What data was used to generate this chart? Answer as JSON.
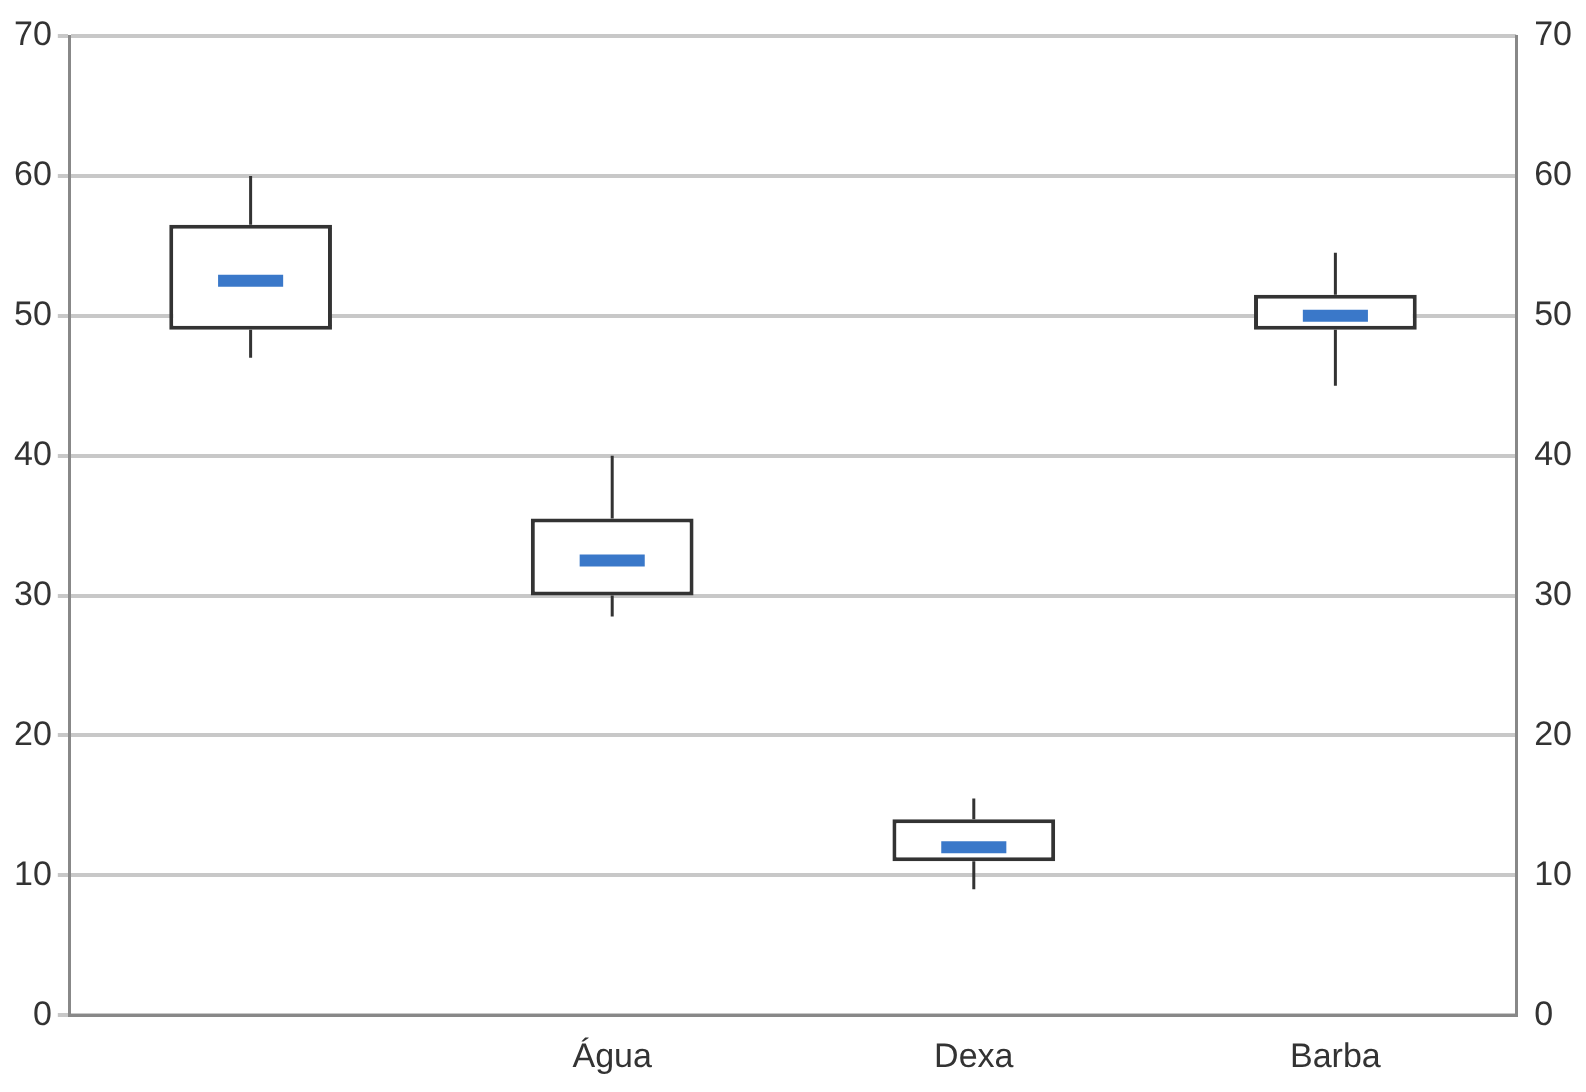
{
  "chart_data": {
    "type": "box",
    "categories": [
      null,
      "Água",
      "Dexa",
      "Barba"
    ],
    "series": [
      {
        "color": "#333333",
        "boxes": [
          {
            "low": 47,
            "q1": 49,
            "median": 52.5,
            "q3": 56.5,
            "high": 60
          },
          {
            "low": 28.5,
            "q1": 30,
            "median": 32.5,
            "q3": 35.5,
            "high": 40
          },
          {
            "low": 9,
            "q1": 11,
            "median": 12,
            "q3": 14,
            "high": 15.5
          },
          {
            "low": 45,
            "q1": 49,
            "median": 50,
            "q3": 51.5,
            "high": 54.5
          }
        ]
      }
    ],
    "ylim": [
      0,
      70
    ],
    "yticks": [
      0,
      10,
      20,
      30,
      40,
      50,
      60,
      70
    ],
    "y2lim": [
      0,
      70
    ],
    "y2ticks": [
      0,
      10,
      20,
      30,
      40,
      50,
      60,
      70
    ],
    "grid": "y",
    "legend": false
  }
}
